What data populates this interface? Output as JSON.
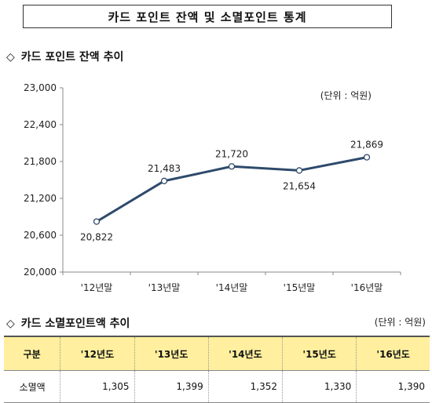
{
  "header": {
    "title": "카드 포인트 잔액 및 소멸포인트 통계"
  },
  "section1": {
    "symbol": "◇",
    "heading": "카드 포인트 잔액 추이"
  },
  "section2": {
    "symbol": "◇",
    "heading": "카드 소멸포인트액 추이",
    "unit": "(단위 : 억원)"
  },
  "chart_data": {
    "type": "line",
    "categories": [
      "'12년말",
      "'13년말",
      "'14년말",
      "'15년말",
      "'16년말"
    ],
    "values": [
      20822,
      21483,
      21720,
      21654,
      21869
    ],
    "value_labels": [
      "20,822",
      "21,483",
      "21,720",
      "21,654",
      "21,869"
    ],
    "yticks": [
      "20,000",
      "20,600",
      "21,200",
      "21,800",
      "22,400",
      "23,000"
    ],
    "ylim": [
      20000,
      23000
    ],
    "unit": "(단위 : 억원)",
    "line_color": "#2e4a6b",
    "grid": false,
    "title": "",
    "xlabel": "",
    "ylabel": ""
  },
  "table": {
    "headers": [
      "구분",
      "'12년도",
      "'13년도",
      "'14년도",
      "'15년도",
      "'16년도"
    ],
    "rows": [
      {
        "label": "소멸액",
        "values": [
          "1,305",
          "1,399",
          "1,352",
          "1,330",
          "1,390"
        ]
      }
    ],
    "header_bg": "#ffef9e"
  }
}
